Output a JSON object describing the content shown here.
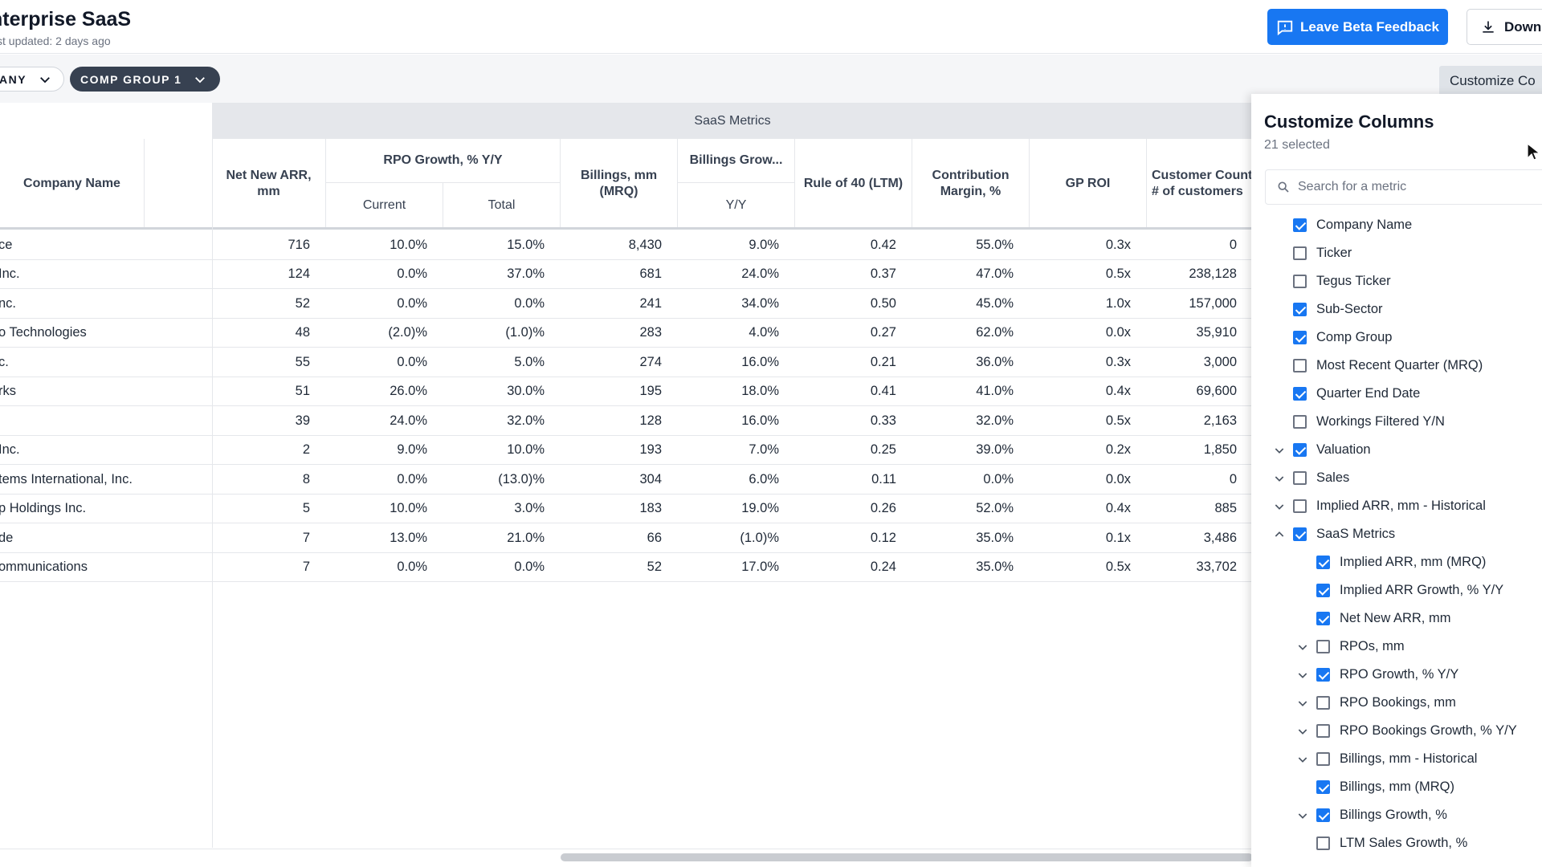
{
  "header": {
    "title": "nterprise SaaS",
    "subtitle": "st updated: 2 days ago",
    "feedback_button": "Leave Beta Feedback",
    "download_button": "Downl"
  },
  "filters": {
    "chip1": "ANY",
    "chip2": "COMP GROUP 1",
    "customize_button": "Customize Co"
  },
  "table": {
    "group_header": "SaaS Metrics",
    "columns": {
      "company": "Company Name",
      "net_new_arr": "Net New ARR, mm",
      "rpo_growth": "RPO Growth, % Y/Y",
      "rpo_current": "Current",
      "rpo_total": "Total",
      "billings": "Billings, mm (MRQ)",
      "billings_growth": "Billings Grow...",
      "billings_yy": "Y/Y",
      "rule40": "Rule of 40 (LTM)",
      "contribution": "Contribution Margin, %",
      "gp_roi": "GP ROI",
      "customers": "Customer Count, # of customers"
    },
    "rows": [
      {
        "name": "ce",
        "net_new_arr": "716",
        "rpo_current": "10.0%",
        "rpo_total": "15.0%",
        "billings": "8,430",
        "billings_yy": "9.0%",
        "rule40": "0.42",
        "contribution": "55.0%",
        "gp_roi": "0.3x",
        "customers": "0"
      },
      {
        "name": " Inc.",
        "net_new_arr": "124",
        "rpo_current": "0.0%",
        "rpo_total": "37.0%",
        "billings": "681",
        "billings_yy": "24.0%",
        "rule40": "0.37",
        "contribution": "47.0%",
        "gp_roi": "0.5x",
        "customers": "238,128"
      },
      {
        "name": "nc.",
        "net_new_arr": "52",
        "rpo_current": "0.0%",
        "rpo_total": "0.0%",
        "billings": "241",
        "billings_yy": "34.0%",
        "rule40": "0.50",
        "contribution": "45.0%",
        "gp_roi": "1.0x",
        "customers": "157,000"
      },
      {
        "name": "o Technologies",
        "net_new_arr": "48",
        "rpo_current": "(2.0)%",
        "rpo_total": "(1.0)%",
        "billings": "283",
        "billings_yy": "4.0%",
        "rule40": "0.27",
        "contribution": "62.0%",
        "gp_roi": "0.0x",
        "customers": "35,910"
      },
      {
        "name": "c.",
        "net_new_arr": "55",
        "rpo_current": "0.0%",
        "rpo_total": "5.0%",
        "billings": "274",
        "billings_yy": "16.0%",
        "rule40": "0.21",
        "contribution": "36.0%",
        "gp_roi": "0.3x",
        "customers": "3,000"
      },
      {
        "name": "rks",
        "net_new_arr": "51",
        "rpo_current": "26.0%",
        "rpo_total": "30.0%",
        "billings": "195",
        "billings_yy": "18.0%",
        "rule40": "0.41",
        "contribution": "41.0%",
        "gp_roi": "0.4x",
        "customers": "69,600"
      },
      {
        "name": "",
        "net_new_arr": "39",
        "rpo_current": "24.0%",
        "rpo_total": "32.0%",
        "billings": "128",
        "billings_yy": "16.0%",
        "rule40": "0.33",
        "contribution": "32.0%",
        "gp_roi": "0.5x",
        "customers": "2,163"
      },
      {
        "name": "Inc.",
        "net_new_arr": "2",
        "rpo_current": "9.0%",
        "rpo_total": "10.0%",
        "billings": "193",
        "billings_yy": "7.0%",
        "rule40": "0.25",
        "contribution": "39.0%",
        "gp_roi": "0.2x",
        "customers": "1,850"
      },
      {
        "name": "tems International, Inc.",
        "net_new_arr": "8",
        "rpo_current": "0.0%",
        "rpo_total": "(13.0)%",
        "billings": "304",
        "billings_yy": "6.0%",
        "rule40": "0.11",
        "contribution": "0.0%",
        "gp_roi": "0.0x",
        "customers": "0"
      },
      {
        "name": "p Holdings Inc.",
        "net_new_arr": "5",
        "rpo_current": "10.0%",
        "rpo_total": "3.0%",
        "billings": "183",
        "billings_yy": "19.0%",
        "rule40": "0.26",
        "contribution": "52.0%",
        "gp_roi": "0.4x",
        "customers": "885"
      },
      {
        "name": "de",
        "net_new_arr": "7",
        "rpo_current": "13.0%",
        "rpo_total": "21.0%",
        "billings": "66",
        "billings_yy": "(1.0)%",
        "rule40": "0.12",
        "contribution": "35.0%",
        "gp_roi": "0.1x",
        "customers": "3,486"
      },
      {
        "name": "ommunications",
        "net_new_arr": "7",
        "rpo_current": "0.0%",
        "rpo_total": "0.0%",
        "billings": "52",
        "billings_yy": "17.0%",
        "rule40": "0.24",
        "contribution": "35.0%",
        "gp_roi": "0.5x",
        "customers": "33,702"
      }
    ]
  },
  "panel": {
    "title": "Customize Columns",
    "count": "21 selected",
    "search_placeholder": "Search for a metric",
    "items": [
      {
        "label": "Company Name",
        "checked": true,
        "level": 0,
        "expander": "none"
      },
      {
        "label": "Ticker",
        "checked": false,
        "level": 0,
        "expander": "none"
      },
      {
        "label": "Tegus Ticker",
        "checked": false,
        "level": 0,
        "expander": "none"
      },
      {
        "label": "Sub-Sector",
        "checked": true,
        "level": 0,
        "expander": "none"
      },
      {
        "label": "Comp Group",
        "checked": true,
        "level": 0,
        "expander": "none"
      },
      {
        "label": "Most Recent Quarter (MRQ)",
        "checked": false,
        "level": 0,
        "expander": "none"
      },
      {
        "label": "Quarter End Date",
        "checked": true,
        "level": 0,
        "expander": "none"
      },
      {
        "label": "Workings Filtered Y/N",
        "checked": false,
        "level": 0,
        "expander": "none"
      },
      {
        "label": "Valuation",
        "checked": true,
        "level": 0,
        "expander": "down"
      },
      {
        "label": "Sales",
        "checked": false,
        "level": 0,
        "expander": "down"
      },
      {
        "label": "Implied ARR, mm - Historical",
        "checked": false,
        "level": 0,
        "expander": "down"
      },
      {
        "label": "SaaS Metrics",
        "checked": true,
        "level": 0,
        "expander": "up"
      },
      {
        "label": "Implied ARR, mm (MRQ)",
        "checked": true,
        "level": 1,
        "expander": "none"
      },
      {
        "label": "Implied ARR Growth, % Y/Y",
        "checked": true,
        "level": 1,
        "expander": "none"
      },
      {
        "label": "Net New ARR, mm",
        "checked": true,
        "level": 1,
        "expander": "none"
      },
      {
        "label": "RPOs, mm",
        "checked": false,
        "level": 1,
        "expander": "down"
      },
      {
        "label": "RPO Growth, % Y/Y",
        "checked": true,
        "level": 1,
        "expander": "down"
      },
      {
        "label": "RPO Bookings, mm",
        "checked": false,
        "level": 1,
        "expander": "down"
      },
      {
        "label": "RPO Bookings Growth, % Y/Y",
        "checked": false,
        "level": 1,
        "expander": "down"
      },
      {
        "label": "Billings, mm - Historical",
        "checked": false,
        "level": 1,
        "expander": "down"
      },
      {
        "label": "Billings, mm (MRQ)",
        "checked": true,
        "level": 1,
        "expander": "none"
      },
      {
        "label": "Billings Growth, %",
        "checked": true,
        "level": 1,
        "expander": "down"
      },
      {
        "label": "LTM Sales Growth, %",
        "checked": false,
        "level": 1,
        "expander": "none"
      }
    ]
  },
  "colors": {
    "accent": "#1877f2",
    "chip_dark": "#374151",
    "group_header_bg": "#e5e7eb"
  }
}
